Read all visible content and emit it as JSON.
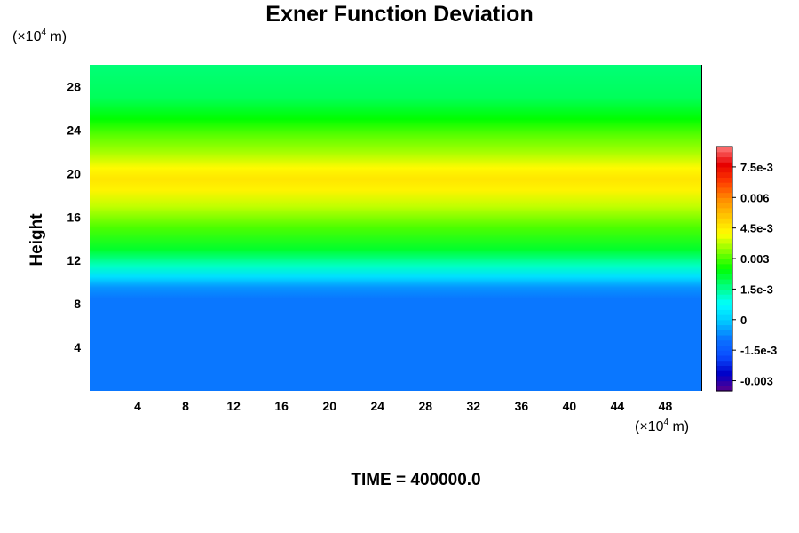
{
  "title": "Exner Function Deviation",
  "y_unit": {
    "prefix": "(×10",
    "exp": "4",
    "suffix": " m)"
  },
  "x_unit": {
    "prefix": "(×10",
    "exp": "4",
    "suffix": " m)"
  },
  "ylabel": "Height",
  "time_label": "TIME = 400000.0",
  "colors": {
    "band_low": "#0a74ff",
    "band_cyan": "#00ffff",
    "band_green": "#00ff00",
    "band_yellow": "#ffff00",
    "band_top": "#00ffc8"
  },
  "chart_data": {
    "type": "heatmap",
    "x_ticks": [
      "4",
      "8",
      "12",
      "16",
      "20",
      "24",
      "28",
      "32",
      "36",
      "40",
      "44",
      "48"
    ],
    "y_ticks": [
      "4",
      "8",
      "12",
      "16",
      "20",
      "24",
      "28"
    ],
    "xlim": [
      0,
      51
    ],
    "ylim": [
      0,
      30
    ],
    "colorbar": {
      "labels": [
        "7.5e-3",
        "0.006",
        "4.5e-3",
        "0.003",
        "1.5e-3",
        "0",
        "-1.5e-3",
        "-0.003"
      ],
      "label_values": [
        0.0075,
        0.006,
        0.0045,
        0.003,
        0.0015,
        0,
        -0.0015,
        -0.003
      ],
      "range": [
        -0.0035,
        0.0085
      ]
    },
    "field_profile": {
      "height": [
        0,
        8.5,
        9.5,
        10.5,
        11.5,
        13,
        15,
        17,
        18.5,
        19.5,
        20.5,
        22,
        23.5,
        25,
        27,
        30
      ],
      "value": [
        -0.0009,
        -0.0009,
        -0.0006,
        0.0003,
        0.0012,
        0.0022,
        0.003,
        0.0038,
        0.0044,
        0.0046,
        0.0043,
        0.0036,
        0.0031,
        0.0025,
        0.0019,
        0.0017
      ]
    }
  }
}
